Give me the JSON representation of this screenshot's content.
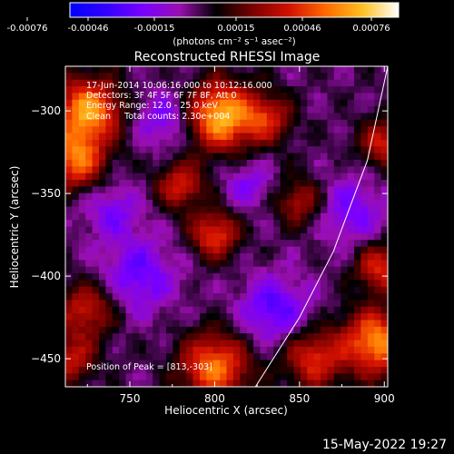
{
  "colorbar": {
    "ticks": [
      "-0.00076",
      "-0.00046",
      "-0.00015",
      "0.00015",
      "0.00046",
      "0.00076"
    ],
    "unit_label": "(photons cm⁻² s⁻¹ asec⁻²)",
    "stops": [
      "#0000ff",
      "#3300ff",
      "#7a00ff",
      "#9a0fb0",
      "#000000",
      "#7a0000",
      "#d21000",
      "#ff6a00",
      "#ffbf20",
      "#ffffff"
    ]
  },
  "chart_data": {
    "type": "heatmap",
    "title": "Reconstructed RHESSI Image",
    "xlabel": "Heliocentric X (arcsec)",
    "ylabel": "Heliocentric Y (arcsec)",
    "xlim": [
      712,
      902
    ],
    "ylim": [
      -467,
      -273
    ],
    "xticks": [
      750,
      800,
      850,
      900
    ],
    "yticks": [
      -300,
      -350,
      -400,
      -450
    ],
    "annotations": [
      "17-Jun-2014 10:06:16.000 to 10:12:16.000",
      "Detectors: 3F 4F 5F 6F 7F 8F, Att 0",
      "Energy Range: 12.0 - 25.0 keV",
      "Clean     Total counts: 2.30e+004"
    ],
    "peak_label": "Position of Peak = [813,-303]",
    "limb": [
      [
        824,
        -467
      ],
      [
        850,
        -425
      ],
      [
        870,
        -385
      ],
      [
        890,
        -330
      ],
      [
        902,
        -273
      ]
    ],
    "sources": [
      {
        "x": 804,
        "y": -303,
        "value": 1.0,
        "r": 14
      },
      {
        "x": 725,
        "y": -300,
        "value": 0.9,
        "r": 14
      },
      {
        "x": 718,
        "y": -330,
        "value": 0.75,
        "r": 12
      },
      {
        "x": 800,
        "y": -455,
        "value": 0.8,
        "r": 14
      },
      {
        "x": 725,
        "y": -420,
        "value": 0.55,
        "r": 12
      },
      {
        "x": 715,
        "y": -450,
        "value": 0.5,
        "r": 10
      },
      {
        "x": 895,
        "y": -440,
        "value": 0.85,
        "r": 14
      },
      {
        "x": 898,
        "y": -395,
        "value": 0.6,
        "r": 10
      },
      {
        "x": 900,
        "y": -320,
        "value": 0.55,
        "r": 10
      },
      {
        "x": 800,
        "y": -375,
        "value": 0.65,
        "r": 10
      },
      {
        "x": 780,
        "y": -345,
        "value": 0.55,
        "r": 10
      },
      {
        "x": 850,
        "y": -355,
        "value": 0.45,
        "r": 10
      },
      {
        "x": 832,
        "y": -305,
        "value": 0.5,
        "r": 10
      },
      {
        "x": 858,
        "y": -450,
        "value": 0.6,
        "r": 12
      },
      {
        "x": 755,
        "y": -400,
        "value": -0.4,
        "r": 16
      },
      {
        "x": 835,
        "y": -420,
        "value": -0.45,
        "r": 14
      },
      {
        "x": 770,
        "y": -305,
        "value": -0.35,
        "r": 12
      },
      {
        "x": 880,
        "y": -360,
        "value": -0.35,
        "r": 14
      },
      {
        "x": 740,
        "y": -360,
        "value": -0.3,
        "r": 12
      },
      {
        "x": 820,
        "y": -345,
        "value": -0.3,
        "r": 10
      }
    ]
  },
  "footer": {
    "timestamp": "15-May-2022 19:27"
  }
}
